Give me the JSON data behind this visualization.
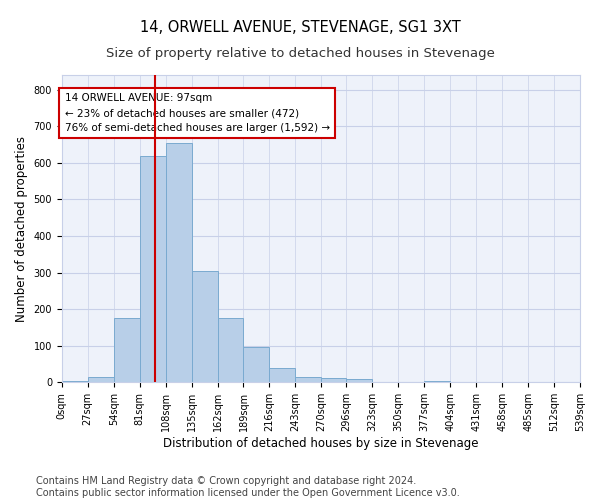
{
  "title": "14, ORWELL AVENUE, STEVENAGE, SG1 3XT",
  "subtitle": "Size of property relative to detached houses in Stevenage",
  "xlabel": "Distribution of detached houses by size in Stevenage",
  "ylabel": "Number of detached properties",
  "bin_edges": [
    0,
    27,
    54,
    81,
    108,
    135,
    162,
    189,
    216,
    243,
    270,
    296,
    323,
    350,
    377,
    404,
    431,
    458,
    485,
    512,
    539
  ],
  "bar_heights": [
    5,
    15,
    175,
    618,
    655,
    305,
    175,
    97,
    40,
    15,
    12,
    8,
    0,
    0,
    5,
    0,
    0,
    0,
    0,
    0
  ],
  "bar_color": "#b8cfe8",
  "bar_edge_color": "#7aaad0",
  "property_size": 97,
  "vline_color": "#cc0000",
  "annotation_text": "14 ORWELL AVENUE: 97sqm\n← 23% of detached houses are smaller (472)\n76% of semi-detached houses are larger (1,592) →",
  "annotation_box_color": "#ffffff",
  "annotation_box_edge_color": "#cc0000",
  "ylim": [
    0,
    840
  ],
  "yticks": [
    0,
    100,
    200,
    300,
    400,
    500,
    600,
    700,
    800
  ],
  "footer_line1": "Contains HM Land Registry data © Crown copyright and database right 2024.",
  "footer_line2": "Contains public sector information licensed under the Open Government Licence v3.0.",
  "bg_color": "#ffffff",
  "plot_bg_color": "#eef2fa",
  "grid_color": "#c8d0e8",
  "title_fontsize": 10.5,
  "subtitle_fontsize": 9.5,
  "axis_label_fontsize": 8.5,
  "tick_fontsize": 7,
  "footer_fontsize": 7,
  "annotation_fontsize": 7.5
}
